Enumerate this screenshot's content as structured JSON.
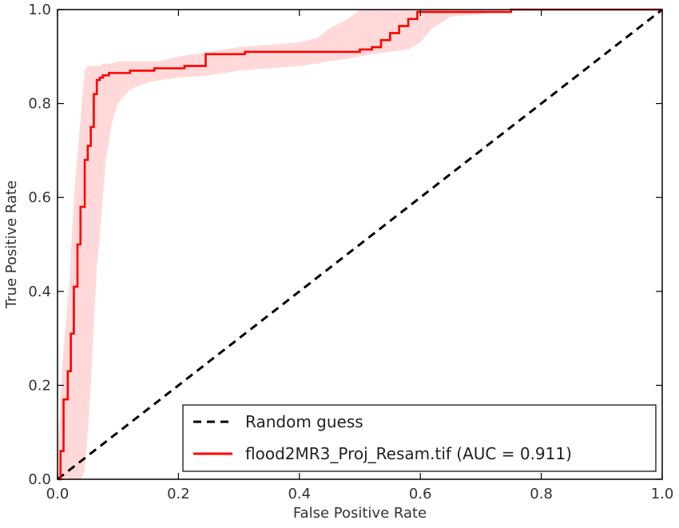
{
  "chart_data": {
    "type": "line",
    "title": "",
    "xlabel": "False Positive Rate",
    "ylabel": "True Positive Rate",
    "xlim": [
      0.0,
      1.0
    ],
    "ylim": [
      0.0,
      1.0
    ],
    "x_ticks": [
      "0.0",
      "0.2",
      "0.4",
      "0.6",
      "0.8",
      "1.0"
    ],
    "y_ticks": [
      "0.0",
      "0.2",
      "0.4",
      "0.6",
      "0.8",
      "1.0"
    ],
    "grid": false,
    "legend_position": "lower-right",
    "series": [
      {
        "name": "Random guess",
        "style": "dashed",
        "color": "#000000",
        "x": [
          0.0,
          1.0
        ],
        "y": [
          0.0,
          1.0
        ]
      },
      {
        "name": "flood2MR3_Proj_Resam.tif (AUC = 0.911)",
        "style": "step",
        "color": "#ff0000",
        "x": [
          0.0,
          0.005,
          0.005,
          0.01,
          0.01,
          0.017,
          0.017,
          0.022,
          0.022,
          0.027,
          0.027,
          0.033,
          0.033,
          0.038,
          0.038,
          0.045,
          0.045,
          0.05,
          0.05,
          0.055,
          0.055,
          0.06,
          0.06,
          0.065,
          0.065,
          0.07,
          0.07,
          0.075,
          0.075,
          0.085,
          0.085,
          0.12,
          0.12,
          0.16,
          0.16,
          0.21,
          0.21,
          0.245,
          0.245,
          0.31,
          0.31,
          0.5,
          0.5,
          0.52,
          0.52,
          0.535,
          0.535,
          0.55,
          0.55,
          0.565,
          0.565,
          0.58,
          0.58,
          0.595,
          0.595,
          0.61,
          0.61,
          0.75,
          0.75,
          1.0
        ],
        "y": [
          0.0,
          0.0,
          0.06,
          0.06,
          0.17,
          0.17,
          0.23,
          0.23,
          0.31,
          0.31,
          0.41,
          0.41,
          0.5,
          0.5,
          0.58,
          0.58,
          0.68,
          0.68,
          0.71,
          0.71,
          0.75,
          0.75,
          0.82,
          0.82,
          0.85,
          0.85,
          0.855,
          0.855,
          0.86,
          0.86,
          0.865,
          0.865,
          0.87,
          0.87,
          0.875,
          0.875,
          0.88,
          0.88,
          0.905,
          0.905,
          0.91,
          0.91,
          0.915,
          0.915,
          0.92,
          0.92,
          0.935,
          0.935,
          0.95,
          0.95,
          0.965,
          0.965,
          0.98,
          0.98,
          0.995,
          0.995,
          0.995,
          0.995,
          1.0,
          1.0
        ]
      }
    ],
    "confidence_band": {
      "color": "#ffcccc",
      "x": [
        0.0,
        0.005,
        0.01,
        0.015,
        0.02,
        0.025,
        0.03,
        0.035,
        0.04,
        0.045,
        0.05,
        0.055,
        0.06,
        0.065,
        0.07,
        0.075,
        0.08,
        0.09,
        0.1,
        0.12,
        0.15,
        0.17,
        0.2,
        0.25,
        0.3,
        0.4,
        0.43,
        0.45,
        0.48,
        0.5,
        0.52,
        0.55,
        0.58,
        0.6,
        0.62,
        0.65,
        0.7,
        0.75,
        1.0
      ],
      "upper": [
        0.05,
        0.18,
        0.28,
        0.35,
        0.42,
        0.55,
        0.65,
        0.72,
        0.8,
        0.87,
        0.88,
        0.88,
        0.88,
        0.88,
        0.88,
        0.885,
        0.885,
        0.885,
        0.89,
        0.89,
        0.89,
        0.89,
        0.9,
        0.91,
        0.92,
        0.93,
        0.94,
        0.96,
        0.98,
        1.0,
        1.0,
        1.0,
        1.0,
        1.0,
        1.0,
        1.0,
        1.0,
        1.0,
        1.0
      ],
      "lower": [
        0.0,
        0.0,
        0.0,
        0.0,
        0.0,
        0.0,
        0.0,
        0.0,
        0.0,
        0.02,
        0.1,
        0.2,
        0.33,
        0.45,
        0.52,
        0.6,
        0.68,
        0.76,
        0.8,
        0.83,
        0.845,
        0.85,
        0.855,
        0.86,
        0.87,
        0.88,
        0.885,
        0.89,
        0.895,
        0.9,
        0.905,
        0.91,
        0.915,
        0.93,
        0.96,
        0.985,
        0.99,
        1.0,
        1.0
      ]
    }
  }
}
